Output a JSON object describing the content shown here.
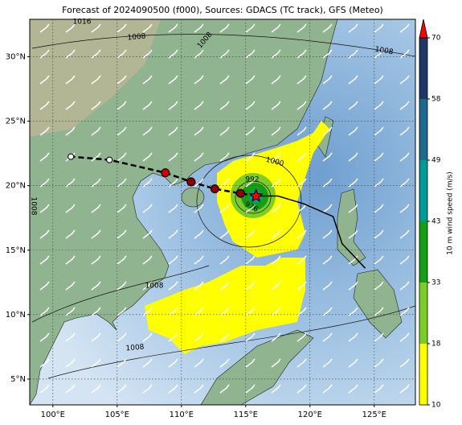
{
  "chart_data": {
    "type": "map",
    "title": "Forecast of 2024090500 (f000), Sources: GDACS (TC track), GFS (Meteo)",
    "xlim": [
      98.2,
      128.2
    ],
    "ylim": [
      3,
      32.9
    ],
    "xticks": [
      {
        "value": 100,
        "label": "100°E"
      },
      {
        "value": 105,
        "label": "105°E"
      },
      {
        "value": 110,
        "label": "110°E"
      },
      {
        "value": 115,
        "label": "115°E"
      },
      {
        "value": 120,
        "label": "120°E"
      },
      {
        "value": 125,
        "label": "125°E"
      }
    ],
    "yticks": [
      {
        "value": 5,
        "label": "5°N"
      },
      {
        "value": 10,
        "label": "10°N"
      },
      {
        "value": 15,
        "label": "15°N"
      },
      {
        "value": 20,
        "label": "20°N"
      },
      {
        "value": 25,
        "label": "25°N"
      },
      {
        "value": 30,
        "label": "30°N"
      }
    ],
    "grid": true,
    "track": {
      "x": [
        124.3,
        122.5,
        121.8,
        119.5,
        117.5,
        115.8
      ],
      "y": [
        13.6,
        15.5,
        17.6,
        18.6,
        19.2,
        19.2
      ]
    },
    "forecast": {
      "x": [
        115.8,
        114.6,
        112.6,
        110.75,
        108.75,
        104.4,
        101.4
      ],
      "y": [
        19.2,
        19.4,
        19.75,
        20.3,
        21.0,
        22.0,
        22.25
      ],
      "marker_colors": [
        "#ff0000",
        "#8b0000",
        "#8b0000",
        "#8b0000",
        "#cc0000",
        "#ffffff",
        "#ffffff"
      ]
    },
    "contour_labels": [
      "1016",
      "1008",
      "1008",
      "1008",
      "1000",
      "992",
      "976",
      "1008",
      "1008",
      "1008"
    ],
    "colorbar": {
      "label": "10 m wind speed (m/s)",
      "ticks": [
        10,
        18,
        33,
        43,
        49,
        58,
        70
      ],
      "colors": [
        "#ffff00",
        "#7ccd28",
        "#14a014",
        "#009b96",
        "#1f6a8c",
        "#1e3766"
      ],
      "extend_color": "#ff0000"
    }
  }
}
